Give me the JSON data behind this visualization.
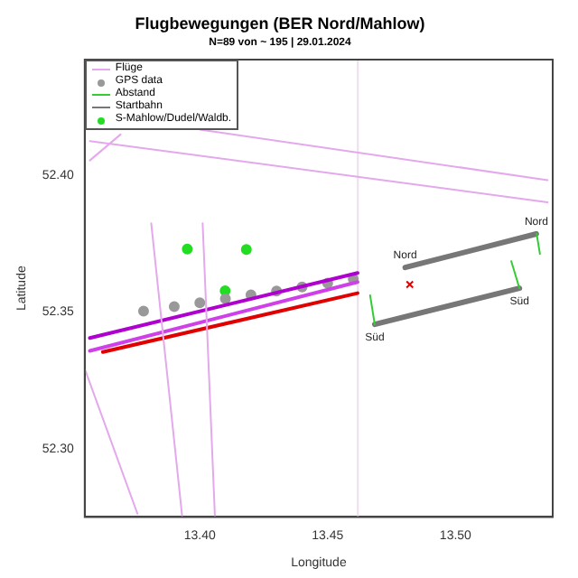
{
  "chart_data": {
    "type": "scatter",
    "title": "Flugbewegungen (BER Nord/Mahlow)",
    "subtitle": "N=89 von ~ 195 | 29.01.2024",
    "xlabel": "Longitude",
    "ylabel": "Latitude",
    "xlim": [
      13.355,
      13.538
    ],
    "ylim": [
      52.275,
      52.4424
    ],
    "xticks": [
      {
        "value": 13.4,
        "label": "13.40"
      },
      {
        "value": 13.45,
        "label": "13.45"
      },
      {
        "value": 13.5,
        "label": "13.50"
      }
    ],
    "yticks": [
      {
        "value": 52.3,
        "label": "52.30"
      },
      {
        "value": 52.35,
        "label": "52.35"
      },
      {
        "value": 52.4,
        "label": "52.40"
      }
    ],
    "grid": false,
    "legend": "top left",
    "ref_lines": [
      {
        "axis": "x",
        "value": 13.4618,
        "color": "#eeddee"
      }
    ],
    "annotations": [
      {
        "text": "Nord",
        "x": 13.4803,
        "y": 52.3663
      },
      {
        "text": "Nord",
        "x": 13.5316,
        "y": 52.3786
      },
      {
        "text": "Süd",
        "x": 13.4684,
        "y": 52.3455
      },
      {
        "text": "Süd",
        "x": 13.525,
        "y": 52.3587
      }
    ],
    "series": [
      {
        "name": "Flüge",
        "type": "line",
        "color": "#e4a8ec",
        "x": [
          13.4,
          13.536,
          null,
          13.357,
          13.536,
          null,
          13.357,
          13.369,
          null,
          13.381,
          13.3931,
          null,
          13.4011,
          13.4059,
          null,
          13.3552,
          13.3756
        ],
        "values": [
          52.4168,
          52.3983,
          null,
          52.4126,
          52.3902,
          null,
          52.4055,
          52.415,
          null,
          52.3825,
          52.2752,
          null,
          52.3825,
          52.2752,
          null,
          52.3287,
          52.2762
        ]
      },
      {
        "type": "line",
        "color": "#b000d0",
        "x": [
          13.357,
          13.4617
        ],
        "values": [
          52.3405,
          52.3643
        ]
      },
      {
        "type": "line",
        "color": "#d040e8",
        "x": [
          13.357,
          13.4617
        ],
        "values": [
          52.3358,
          52.361
        ]
      },
      {
        "type": "line",
        "color": "#e00000",
        "x": [
          13.3621,
          13.4617
        ],
        "values": [
          52.3354,
          52.3569
        ]
      },
      {
        "name": "GPS data",
        "type": "scatter",
        "marker": "circle",
        "color": "#999999",
        "x": [
          13.378,
          13.39,
          13.4,
          13.41,
          13.42,
          13.43,
          13.44,
          13.45,
          13.46
        ],
        "values": [
          52.3503,
          52.352,
          52.3534,
          52.3549,
          52.3563,
          52.3577,
          52.3592,
          52.3606,
          52.3621
        ]
      },
      {
        "name": "Abstand",
        "type": "line",
        "color": "#33cc33",
        "x": [
          13.4666,
          13.4684,
          null,
          13.5317,
          13.533,
          null,
          13.5218,
          13.525
        ],
        "values": [
          52.3561,
          52.3455,
          null,
          52.3787,
          52.3713,
          null,
          52.3686,
          52.3587
        ]
      },
      {
        "name": "Startbahn",
        "type": "line",
        "color": "#777777",
        "x": [
          13.4803,
          13.5316,
          null,
          13.4684,
          13.525
        ],
        "values": [
          52.3663,
          52.3786,
          null,
          52.3455,
          52.3587
        ]
      },
      {
        "name": "S-Mahlow/Dudel/Waldb.",
        "type": "scatter",
        "marker": "circle",
        "color": "#22dd22",
        "x": [
          13.3951,
          13.4182,
          13.4099
        ],
        "values": [
          52.3731,
          52.3729,
          52.3578
        ]
      },
      {
        "type": "scatter",
        "marker": "cross",
        "color": "#e00000",
        "x": [
          13.4821
        ],
        "values": [
          52.3601
        ]
      }
    ]
  }
}
